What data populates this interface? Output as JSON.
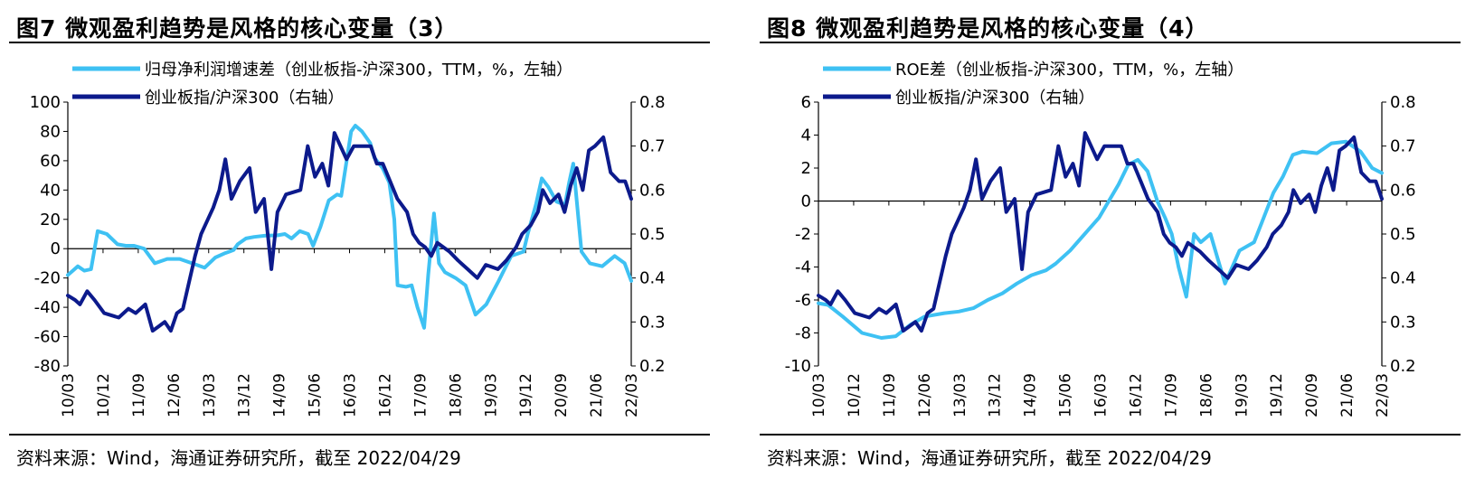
{
  "panels": [
    {
      "title": "图7   微观盈利趋势是风格的核心变量（3）",
      "source": "资料来源：Wind，海通证券研究所，截至 2022/04/29"
    },
    {
      "title": "图8   微观盈利趋势是风格的核心变量（4）",
      "source": "资料来源：Wind，海通证券研究所，截至 2022/04/29"
    }
  ],
  "chart_data": [
    {
      "type": "line",
      "x_ticks": [
        "10/03",
        "10/12",
        "11/09",
        "12/06",
        "13/03",
        "13/12",
        "14/09",
        "15/06",
        "16/03",
        "16/12",
        "17/09",
        "18/06",
        "19/03",
        "19/12",
        "20/09",
        "21/06",
        "22/03"
      ],
      "left_axis": {
        "ylim": [
          -80,
          100
        ],
        "ticks": [
          100,
          80,
          60,
          40,
          20,
          0,
          -20,
          -40,
          -60,
          -80
        ]
      },
      "right_axis": {
        "ylim": [
          0.2,
          0.8
        ],
        "ticks": [
          "0.8",
          "0.7",
          "0.6",
          "0.5",
          "0.4",
          "0.3",
          "0.2"
        ]
      },
      "colors": {
        "left_series": "#3EC1F3",
        "right_series": "#0C1A8C"
      },
      "series": [
        {
          "name": "归母净利润增速差（创业板指-沪深300，TTM，%，左轴）",
          "axis": "left",
          "values": [
            -18,
            -15,
            -12,
            -15,
            -14,
            12,
            10,
            3,
            2,
            2,
            0,
            -10,
            -7,
            -7,
            -10,
            -13,
            -6,
            -3,
            -1,
            3,
            7,
            8,
            9,
            9,
            10,
            7,
            12,
            10,
            2,
            15,
            33,
            37,
            36,
            80,
            84,
            80,
            72,
            62,
            55,
            45,
            20,
            -25,
            -26,
            -25,
            -40,
            -54,
            -18,
            24,
            -10,
            -16,
            -20,
            -25,
            -45,
            -38,
            -22,
            -5,
            -3,
            -2,
            10,
            30,
            48,
            42,
            32,
            30,
            45,
            58,
            -2,
            -10,
            -12,
            -5,
            -10,
            -22
          ],
          "x": [
            0,
            0.06,
            0.12,
            0.2,
            0.28,
            0.36,
            0.47,
            0.6,
            0.7,
            0.8,
            0.92,
            1.05,
            1.2,
            1.35,
            1.5,
            1.65,
            1.78,
            1.9,
            2.0,
            2.05,
            2.15,
            2.25,
            2.4,
            2.52,
            2.62,
            2.7,
            2.8,
            2.9,
            2.96,
            3.05,
            3.15,
            3.25,
            3.3,
            3.42,
            3.47,
            3.55,
            3.65,
            3.7,
            3.8,
            3.88,
            3.94,
            3.98,
            4.08,
            4.15,
            4.22,
            4.3,
            4.35,
            4.42,
            4.48,
            4.55,
            4.68,
            4.8,
            4.92,
            5.05,
            5.2,
            5.35,
            5.45,
            5.5,
            5.55,
            5.65,
            5.72,
            5.8,
            5.9,
            6.0,
            6.05,
            6.1,
            6.2,
            6.3,
            6.45,
            6.6,
            6.72,
            6.8
          ]
        },
        {
          "name": "创业板指/沪深300（右轴）",
          "axis": "right",
          "values": [
            0.36,
            0.35,
            0.34,
            0.37,
            0.35,
            0.32,
            0.31,
            0.33,
            0.32,
            0.34,
            0.28,
            0.29,
            0.3,
            0.28,
            0.32,
            0.33,
            0.45,
            0.5,
            0.53,
            0.56,
            0.6,
            0.67,
            0.58,
            0.62,
            0.65,
            0.55,
            0.58,
            0.42,
            0.55,
            0.59,
            0.6,
            0.7,
            0.63,
            0.66,
            0.61,
            0.73,
            0.67,
            0.7,
            0.7,
            0.7,
            0.66,
            0.66,
            0.62,
            0.58,
            0.55,
            0.5,
            0.48,
            0.47,
            0.45,
            0.48,
            0.46,
            0.44,
            0.42,
            0.4,
            0.43,
            0.42,
            0.44,
            0.47,
            0.5,
            0.52,
            0.55,
            0.6,
            0.57,
            0.59,
            0.55,
            0.61,
            0.65,
            0.6,
            0.69,
            0.7,
            0.72,
            0.64,
            0.62,
            0.62,
            0.58
          ],
          "x": [
            0,
            0.06,
            0.1,
            0.16,
            0.22,
            0.3,
            0.42,
            0.5,
            0.56,
            0.64,
            0.7,
            0.75,
            0.8,
            0.85,
            0.9,
            0.95,
            1.05,
            1.1,
            1.15,
            1.2,
            1.25,
            1.3,
            1.35,
            1.42,
            1.5,
            1.55,
            1.62,
            1.68,
            1.73,
            1.8,
            1.92,
            1.98,
            2.04,
            2.1,
            2.15,
            2.2,
            2.3,
            2.36,
            2.44,
            2.5,
            2.55,
            2.6,
            2.66,
            2.72,
            2.8,
            2.85,
            2.9,
            2.95,
            3.0,
            3.05,
            3.15,
            3.22,
            3.3,
            3.38,
            3.45,
            3.55,
            3.62,
            3.7,
            3.75,
            3.82,
            3.88,
            3.92,
            3.98,
            4.05,
            4.1,
            4.15,
            4.2,
            4.25,
            4.3,
            4.35,
            4.42,
            4.48,
            4.55,
            4.6,
            4.65
          ]
        }
      ]
    },
    {
      "type": "line",
      "x_ticks": [
        "10/03",
        "10/12",
        "11/09",
        "12/06",
        "13/03",
        "13/12",
        "14/09",
        "15/06",
        "16/03",
        "16/12",
        "17/09",
        "18/06",
        "19/03",
        "19/12",
        "20/09",
        "21/06",
        "22/03"
      ],
      "left_axis": {
        "ylim": [
          -10,
          6
        ],
        "ticks": [
          6,
          4,
          2,
          0,
          -2,
          -4,
          -6,
          -8,
          -10
        ]
      },
      "right_axis": {
        "ylim": [
          0.2,
          0.8
        ],
        "ticks": [
          "0.8",
          "0.7",
          "0.6",
          "0.5",
          "0.4",
          "0.3",
          "0.2"
        ]
      },
      "colors": {
        "left_series": "#3EC1F3",
        "right_series": "#0C1A8C"
      },
      "series": [
        {
          "name": "ROE差（创业板指-沪深300，TTM，%，左轴）",
          "axis": "left",
          "values": [
            -6.2,
            -6.3,
            -7.0,
            -8.0,
            -8.3,
            -8.2,
            -7.5,
            -7.0,
            -6.8,
            -6.7,
            -6.5,
            -6.0,
            -5.6,
            -5.0,
            -4.5,
            -4.2,
            -3.8,
            -3.0,
            -2.0,
            -1.0,
            1.0,
            2.2,
            2.5,
            1.8,
            0.0,
            -1.0,
            -2.0,
            -4.0,
            -5.8,
            -2.0,
            -2.5,
            -2.0,
            -5.0,
            -3.0,
            -2.5,
            -1.0,
            0.5,
            1.5,
            2.8,
            3.0,
            2.9,
            3.5,
            3.6,
            3.0,
            2.0,
            1.7
          ],
          "x": [
            0,
            0.1,
            0.25,
            0.45,
            0.65,
            0.8,
            0.95,
            1.1,
            1.3,
            1.45,
            1.6,
            1.75,
            1.9,
            2.05,
            2.2,
            2.35,
            2.45,
            2.6,
            2.75,
            2.9,
            3.1,
            3.2,
            3.3,
            3.4,
            3.5,
            3.58,
            3.65,
            3.72,
            3.8,
            3.88,
            3.95,
            4.05,
            4.2,
            4.35,
            4.5,
            4.6,
            4.7,
            4.8,
            4.9,
            5.0,
            5.15,
            5.3,
            5.45,
            5.6,
            5.72,
            5.82
          ]
        },
        {
          "name": "创业板指/沪深300（右轴）",
          "axis": "right",
          "values": [
            0.36,
            0.35,
            0.34,
            0.37,
            0.35,
            0.32,
            0.31,
            0.33,
            0.32,
            0.34,
            0.28,
            0.29,
            0.3,
            0.28,
            0.32,
            0.33,
            0.45,
            0.5,
            0.53,
            0.56,
            0.6,
            0.67,
            0.58,
            0.62,
            0.65,
            0.55,
            0.58,
            0.42,
            0.55,
            0.59,
            0.6,
            0.7,
            0.63,
            0.66,
            0.61,
            0.73,
            0.67,
            0.7,
            0.7,
            0.7,
            0.66,
            0.66,
            0.62,
            0.58,
            0.55,
            0.5,
            0.48,
            0.47,
            0.45,
            0.48,
            0.46,
            0.44,
            0.42,
            0.4,
            0.43,
            0.42,
            0.44,
            0.47,
            0.5,
            0.52,
            0.55,
            0.6,
            0.57,
            0.59,
            0.55,
            0.61,
            0.65,
            0.6,
            0.69,
            0.7,
            0.72,
            0.64,
            0.62,
            0.62,
            0.58
          ],
          "x": [
            0,
            0.06,
            0.1,
            0.16,
            0.22,
            0.3,
            0.42,
            0.5,
            0.56,
            0.64,
            0.7,
            0.75,
            0.8,
            0.85,
            0.9,
            0.95,
            1.05,
            1.1,
            1.15,
            1.2,
            1.25,
            1.3,
            1.35,
            1.42,
            1.5,
            1.55,
            1.62,
            1.68,
            1.73,
            1.8,
            1.92,
            1.98,
            2.04,
            2.1,
            2.15,
            2.2,
            2.3,
            2.36,
            2.44,
            2.5,
            2.55,
            2.6,
            2.66,
            2.72,
            2.8,
            2.85,
            2.9,
            2.95,
            3.0,
            3.05,
            3.15,
            3.22,
            3.3,
            3.38,
            3.45,
            3.55,
            3.62,
            3.7,
            3.75,
            3.82,
            3.88,
            3.92,
            3.98,
            4.05,
            4.1,
            4.15,
            4.2,
            4.25,
            4.3,
            4.35,
            4.42,
            4.48,
            4.55,
            4.6,
            4.65
          ]
        }
      ]
    }
  ]
}
